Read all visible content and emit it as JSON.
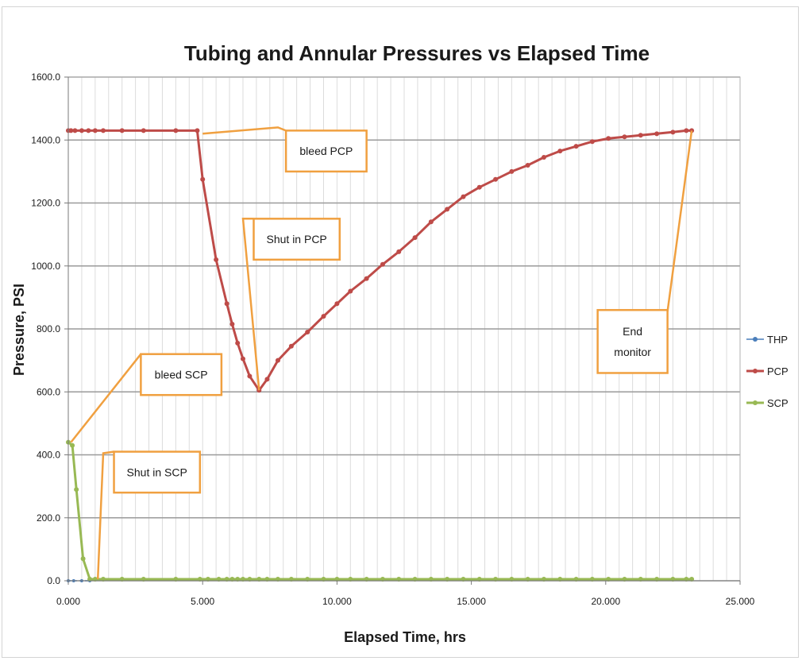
{
  "chart_data": {
    "type": "line",
    "title": "Tubing and Annular Pressures vs Elapsed Time",
    "xlabel": "Elapsed Time, hrs",
    "ylabel": "Pressure, PSI",
    "xlim": [
      0,
      25
    ],
    "ylim": [
      0,
      1600
    ],
    "x_ticks": [
      "0.000",
      "5.000",
      "10.000",
      "15.000",
      "20.000",
      "25.000"
    ],
    "y_ticks": [
      "0.0",
      "200.0",
      "400.0",
      "600.0",
      "800.0",
      "1000.0",
      "1200.0",
      "1400.0",
      "1600.0"
    ],
    "grid": "horizontal major, vertical minor",
    "legend_position": "right",
    "series": [
      {
        "name": "THP",
        "color": "#4a7ebb",
        "x": [
          0.0,
          0.2,
          0.5,
          0.8
        ],
        "y": [
          0,
          0,
          0,
          0
        ]
      },
      {
        "name": "PCP",
        "color": "#be4b48",
        "x": [
          0.0,
          0.1,
          0.25,
          0.5,
          0.75,
          1.0,
          1.3,
          2.0,
          2.8,
          4.0,
          4.8,
          5.0,
          5.5,
          5.9,
          6.1,
          6.3,
          6.5,
          6.75,
          7.1,
          7.4,
          7.8,
          8.3,
          8.9,
          9.5,
          10.0,
          10.5,
          11.1,
          11.7,
          12.3,
          12.9,
          13.5,
          14.1,
          14.7,
          15.3,
          15.9,
          16.5,
          17.1,
          17.7,
          18.3,
          18.9,
          19.5,
          20.1,
          20.7,
          21.3,
          21.9,
          22.5,
          23.0,
          23.2
        ],
        "y": [
          1430,
          1430,
          1430,
          1430,
          1430,
          1430,
          1430,
          1430,
          1430,
          1430,
          1430,
          1275,
          1020,
          880,
          815,
          755,
          705,
          650,
          605,
          640,
          700,
          745,
          790,
          840,
          880,
          920,
          960,
          1005,
          1045,
          1090,
          1140,
          1180,
          1220,
          1250,
          1275,
          1300,
          1320,
          1345,
          1365,
          1380,
          1395,
          1405,
          1410,
          1415,
          1420,
          1425,
          1430,
          1430
        ]
      },
      {
        "name": "SCP",
        "color": "#98b954",
        "x": [
          0.0,
          0.15,
          0.3,
          0.55,
          0.8,
          1.0,
          1.3,
          2.0,
          2.8,
          4.0,
          4.9,
          5.2,
          5.6,
          5.9,
          6.1,
          6.3,
          6.5,
          6.75,
          7.1,
          7.4,
          7.8,
          8.3,
          8.9,
          9.5,
          10.0,
          10.5,
          11.1,
          11.7,
          12.3,
          12.9,
          13.5,
          14.1,
          14.7,
          15.3,
          15.9,
          16.5,
          17.1,
          17.7,
          18.3,
          18.9,
          19.5,
          20.1,
          20.7,
          21.3,
          21.9,
          22.5,
          23.0,
          23.2
        ],
        "y": [
          440,
          430,
          290,
          70,
          5,
          5,
          5,
          5,
          5,
          5,
          5,
          5,
          5,
          5,
          5,
          5,
          5,
          5,
          5,
          5,
          5,
          5,
          5,
          5,
          5,
          5,
          5,
          5,
          5,
          5,
          5,
          5,
          5,
          5,
          5,
          5,
          5,
          5,
          5,
          5,
          5,
          5,
          5,
          5,
          5,
          5,
          5,
          5
        ]
      }
    ],
    "annotations": [
      {
        "id": "bleed-pcp",
        "lines": [
          "bleed PCP"
        ],
        "box_x": [
          8.1,
          11.1
        ],
        "box_y": [
          1300,
          1430
        ],
        "leader": [
          [
            5.0,
            1420
          ],
          [
            7.8,
            1440
          ],
          [
            8.1,
            1430
          ]
        ]
      },
      {
        "id": "shutin-pcp",
        "lines": [
          "Shut in PCP"
        ],
        "box_x": [
          6.9,
          10.1
        ],
        "box_y": [
          1020,
          1150
        ],
        "leader": [
          [
            7.1,
            605
          ],
          [
            6.5,
            1150
          ],
          [
            6.9,
            1150
          ]
        ]
      },
      {
        "id": "end-monitor",
        "lines": [
          "End",
          "monitor"
        ],
        "box_x": [
          19.7,
          22.3
        ],
        "box_y": [
          660,
          860
        ],
        "leader": [
          [
            22.3,
            855
          ],
          [
            23.2,
            1430
          ]
        ]
      },
      {
        "id": "bleed-scp",
        "lines": [
          "bleed SCP"
        ],
        "box_x": [
          2.7,
          5.7
        ],
        "box_y": [
          590,
          720
        ],
        "leader": [
          [
            0.1,
            440
          ],
          [
            2.7,
            720
          ]
        ]
      },
      {
        "id": "shutin-scp",
        "lines": [
          "Shut in SCP"
        ],
        "box_x": [
          1.7,
          4.9
        ],
        "box_y": [
          280,
          410
        ],
        "leader": [
          [
            1.1,
            5
          ],
          [
            1.3,
            405
          ],
          [
            1.7,
            410
          ]
        ]
      }
    ]
  }
}
